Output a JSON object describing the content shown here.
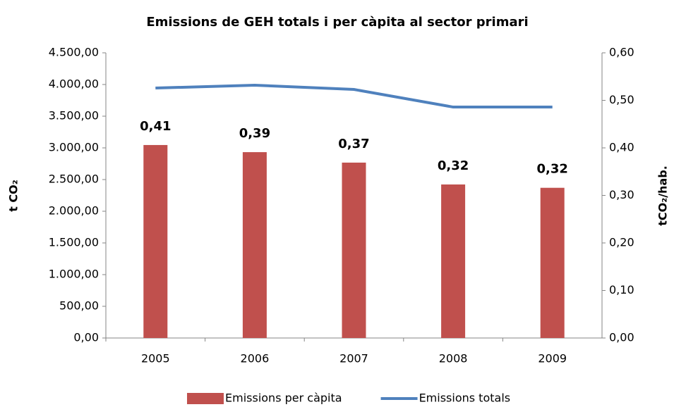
{
  "chart_data": {
    "type": "bar_line",
    "title": "Emissions de GEH totals i per càpita al sector primari",
    "y_label": "t CO₂",
    "y2_label": "tCO₂/hab.",
    "categories": [
      "2005",
      "2006",
      "2007",
      "2008",
      "2009"
    ],
    "series": [
      {
        "name": "Emissions per càpita",
        "type": "bar",
        "axis": "y2",
        "color": "#c0504d",
        "values": [
          0.406,
          0.391,
          0.369,
          0.323,
          0.316
        ],
        "value_labels": [
          "0,41",
          "0,39",
          "0,37",
          "0,32",
          "0,32"
        ]
      },
      {
        "name": "Emissions totals",
        "type": "line",
        "axis": "y",
        "color": "#4f81bd",
        "values": [
          3944,
          3989,
          3922,
          3644,
          3644
        ]
      }
    ],
    "ylim": [
      0,
      4500
    ],
    "yticks": [
      {
        "value": 0,
        "label": "0,00"
      },
      {
        "value": 500,
        "label": "500,00"
      },
      {
        "value": 1000,
        "label": "1.000,00"
      },
      {
        "value": 1500,
        "label": "1.500,00"
      },
      {
        "value": 2000,
        "label": "2.000,00"
      },
      {
        "value": 2500,
        "label": "2.500,00"
      },
      {
        "value": 3000,
        "label": "3.000,00"
      },
      {
        "value": 3500,
        "label": "3.500,00"
      },
      {
        "value": 4000,
        "label": "4.000,00"
      },
      {
        "value": 4500,
        "label": "4.500,00"
      }
    ],
    "y2lim": [
      0,
      0.6
    ],
    "y2ticks": [
      {
        "value": 0,
        "label": "0,00"
      },
      {
        "value": 0.1,
        "label": "0,10"
      },
      {
        "value": 0.2,
        "label": "0,20"
      },
      {
        "value": 0.3,
        "label": "0,30"
      },
      {
        "value": 0.4,
        "label": "0,40"
      },
      {
        "value": 0.5,
        "label": "0,50"
      },
      {
        "value": 0.6,
        "label": "0,60"
      }
    ],
    "grid": false,
    "legend": "bottom"
  }
}
